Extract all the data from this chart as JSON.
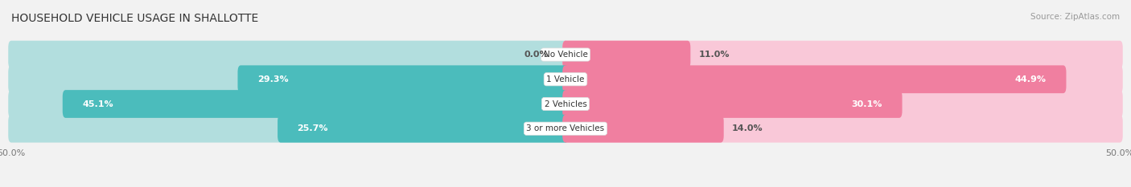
{
  "title": "HOUSEHOLD VEHICLE USAGE IN SHALLOTTE",
  "source": "Source: ZipAtlas.com",
  "categories": [
    "No Vehicle",
    "1 Vehicle",
    "2 Vehicles",
    "3 or more Vehicles"
  ],
  "owner_values": [
    0.0,
    29.3,
    45.1,
    25.7
  ],
  "renter_values": [
    11.0,
    44.9,
    30.1,
    14.0
  ],
  "owner_color": "#4BBCBC",
  "renter_color": "#F07FA0",
  "owner_color_light": "#B2DEDE",
  "renter_color_light": "#F9C8D8",
  "row_colors": [
    "#efefef",
    "#f8f8f8",
    "#efefef",
    "#f8f8f8"
  ],
  "bg_color": "#f2f2f2",
  "xlim": 50.0,
  "title_fontsize": 10,
  "source_fontsize": 7.5,
  "label_fontsize": 8,
  "category_fontsize": 7.5,
  "axis_fontsize": 8
}
